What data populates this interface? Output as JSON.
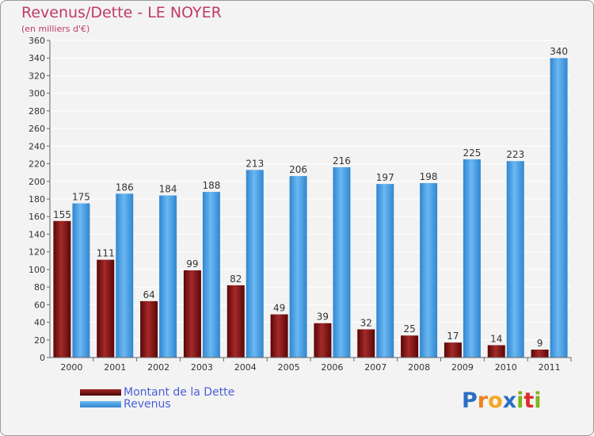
{
  "chart_data": {
    "type": "bar",
    "title": "Revenus/Dette - LE NOYER",
    "subtitle": "(en milliers d'€)",
    "categories": [
      "2000",
      "2001",
      "2002",
      "2003",
      "2004",
      "2005",
      "2006",
      "2007",
      "2008",
      "2009",
      "2010",
      "2011"
    ],
    "series": [
      {
        "name": "Montant de la Dette",
        "values": [
          155,
          111,
          64,
          99,
          82,
          49,
          39,
          32,
          25,
          17,
          14,
          9
        ],
        "color": "#7a1010"
      },
      {
        "name": "Revenus",
        "values": [
          175,
          186,
          184,
          188,
          213,
          206,
          216,
          197,
          198,
          225,
          223,
          340
        ],
        "color": "#4aa3e8"
      }
    ],
    "ylim": [
      0,
      360
    ],
    "ytick_step": 20,
    "grid": true,
    "legend_position": "bottom-left"
  },
  "logo": {
    "letters": [
      "P",
      "r",
      "o",
      "x",
      "i",
      "t",
      "i"
    ],
    "colors": [
      "#2a6fc4",
      "#f08020",
      "#f5a623",
      "#2a6fc4",
      "#7cb518",
      "#e02a2a",
      "#7cb518"
    ]
  }
}
